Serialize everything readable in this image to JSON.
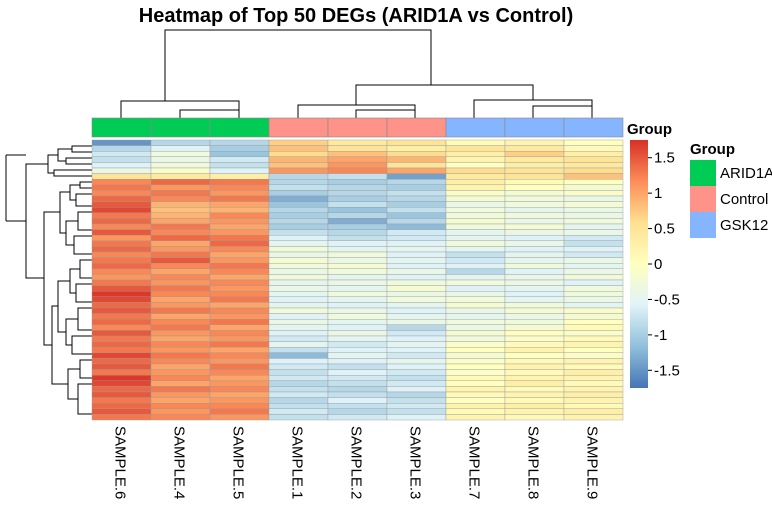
{
  "chart_data": {
    "type": "heatmap",
    "title": "Heatmap of Top 50 DEGs (ARID1A vs Control)",
    "columns": [
      "SAMPLE.6",
      "SAMPLE.4",
      "SAMPLE.5",
      "SAMPLE.1",
      "SAMPLE.2",
      "SAMPLE.3",
      "SAMPLE.7",
      "SAMPLE.8",
      "SAMPLE.9"
    ],
    "column_groups": [
      "ARID1A",
      "ARID1A",
      "ARID1A",
      "Control",
      "Control",
      "Control",
      "GSK12",
      "GSK12",
      "GSK12"
    ],
    "annotation_label": "Group",
    "legend": {
      "title": "Group",
      "entries": [
        {
          "label": "ARID1A",
          "color": "#00CC55"
        },
        {
          "label": "Control",
          "color": "#FF9289"
        },
        {
          "label": "GSK12",
          "color": "#85B5FF"
        }
      ]
    },
    "color_scale": {
      "min": -1.75,
      "max": 1.75,
      "colors": [
        "#4575B4",
        "#91BFDB",
        "#E0F3F8",
        "#FFFFBF",
        "#FEE090",
        "#FC8D59",
        "#D73027"
      ],
      "ticks": [
        1.5,
        1,
        0.5,
        0,
        -0.5,
        -1,
        -1.5
      ],
      "tick_labels": [
        "1.5",
        "1",
        "0.5",
        "0",
        "-0.5",
        "-1",
        "-1.5"
      ]
    },
    "row_count": 50,
    "values": [
      [
        -1.5,
        -0.9,
        -0.9,
        0.7,
        0.4,
        0.5,
        0.1,
        0.2,
        0.0
      ],
      [
        -0.9,
        -0.6,
        -1.0,
        0.8,
        0.5,
        0.3,
        0.5,
        0.4,
        0.1
      ],
      [
        -0.7,
        -0.3,
        -1.1,
        0.6,
        0.8,
        0.6,
        0.3,
        0.7,
        0.3
      ],
      [
        -0.8,
        -0.4,
        -0.7,
        0.9,
        1.0,
        0.9,
        0.2,
        0.4,
        0.5
      ],
      [
        -0.6,
        -0.3,
        -0.8,
        0.8,
        1.1,
        0.5,
        0.0,
        0.3,
        0.4
      ],
      [
        -0.4,
        -0.1,
        -0.6,
        1.1,
        1.2,
        1.0,
        0.6,
        0.5,
        0.6
      ],
      [
        0.5,
        0.4,
        0.3,
        -0.9,
        -0.8,
        -1.4,
        0.4,
        0.5,
        0.8
      ],
      [
        1.2,
        1.4,
        1.3,
        -0.9,
        -1.0,
        -0.9,
        0.3,
        0.1,
        0.0
      ],
      [
        1.3,
        1.1,
        1.2,
        -0.8,
        -0.9,
        -1.0,
        0.2,
        0.0,
        -0.2
      ],
      [
        1.2,
        1.3,
        1.1,
        -1.0,
        -0.9,
        -0.8,
        -0.1,
        -0.2,
        -0.1
      ],
      [
        1.4,
        1.2,
        1.3,
        -1.3,
        -1.0,
        -0.9,
        -0.2,
        -0.3,
        -0.4
      ],
      [
        1.5,
        0.9,
        1.0,
        -1.1,
        -0.8,
        -1.0,
        -0.4,
        -0.3,
        -0.2
      ],
      [
        1.6,
        0.8,
        0.9,
        -0.9,
        -1.1,
        -0.8,
        -0.3,
        -0.5,
        -0.4
      ],
      [
        1.3,
        0.9,
        1.2,
        -1.0,
        -0.9,
        -1.1,
        -0.3,
        -0.3,
        -0.4
      ],
      [
        1.4,
        1.0,
        1.1,
        -0.9,
        -1.3,
        -0.9,
        -0.2,
        -0.4,
        -0.3
      ],
      [
        1.2,
        1.3,
        1.0,
        -1.0,
        -1.0,
        -1.2,
        -0.3,
        -0.2,
        -0.5
      ],
      [
        1.5,
        1.2,
        1.1,
        -0.8,
        -0.9,
        -0.7,
        -0.5,
        -0.4,
        -0.4
      ],
      [
        1.1,
        1.4,
        1.3,
        -0.6,
        -0.8,
        -0.7,
        -0.5,
        -0.6,
        -0.7
      ],
      [
        1.3,
        1.0,
        1.4,
        -0.5,
        -0.6,
        -0.6,
        -0.3,
        -0.4,
        -0.8
      ],
      [
        1.4,
        1.1,
        1.2,
        -0.3,
        -0.5,
        -0.5,
        -0.5,
        -0.6,
        -0.6
      ],
      [
        1.2,
        1.3,
        1.0,
        -0.4,
        -0.3,
        -0.6,
        -0.8,
        -0.5,
        -0.7
      ],
      [
        1.3,
        1.5,
        1.1,
        -0.2,
        -0.4,
        -0.5,
        -0.7,
        -0.5,
        -0.4
      ],
      [
        1.4,
        1.2,
        1.3,
        -0.3,
        -0.2,
        -0.6,
        -0.6,
        -0.3,
        -0.5
      ],
      [
        1.2,
        1.0,
        1.2,
        -0.4,
        -0.3,
        -0.4,
        -0.9,
        -0.6,
        -0.4
      ],
      [
        1.1,
        1.2,
        1.0,
        -0.3,
        -0.5,
        -0.6,
        -0.5,
        -0.4,
        -0.3
      ],
      [
        1.3,
        1.1,
        1.2,
        -0.5,
        -0.4,
        -0.3,
        -0.3,
        -0.4,
        -0.6
      ],
      [
        1.5,
        1.3,
        1.1,
        -0.4,
        -0.5,
        -0.2,
        -0.6,
        -0.5,
        -0.3
      ],
      [
        1.7,
        1.2,
        1.2,
        -0.5,
        -0.3,
        -0.4,
        -0.4,
        -0.6,
        -0.3
      ],
      [
        1.6,
        1.0,
        1.3,
        -0.6,
        -0.5,
        -0.3,
        -0.3,
        -0.5,
        -0.4
      ],
      [
        1.4,
        1.1,
        1.0,
        -0.5,
        -0.6,
        -0.5,
        -0.2,
        -0.3,
        -0.5
      ],
      [
        1.5,
        1.3,
        1.2,
        -0.3,
        -0.4,
        -0.6,
        -0.4,
        -0.2,
        -0.1
      ],
      [
        1.3,
        1.0,
        1.1,
        -0.6,
        -0.3,
        -0.5,
        -0.5,
        -0.4,
        -0.2
      ],
      [
        1.4,
        1.2,
        1.3,
        -0.4,
        -0.5,
        -0.4,
        -0.3,
        -0.3,
        0.0
      ],
      [
        1.2,
        1.3,
        1.0,
        -0.5,
        -0.6,
        -0.9,
        -0.4,
        -0.2,
        0.1
      ],
      [
        1.5,
        1.1,
        1.2,
        -0.6,
        -0.4,
        -0.7,
        -0.2,
        0.0,
        -0.1
      ],
      [
        1.3,
        1.0,
        1.1,
        -0.7,
        -0.5,
        -0.6,
        -0.3,
        -0.1,
        0.1
      ],
      [
        1.4,
        1.2,
        1.3,
        -0.5,
        -0.7,
        -0.5,
        -0.1,
        0.1,
        0.2
      ],
      [
        1.3,
        1.1,
        1.0,
        -0.8,
        -0.6,
        -0.6,
        0.0,
        0.2,
        0.0
      ],
      [
        1.6,
        1.3,
        1.2,
        -1.2,
        -0.5,
        -0.7,
        -0.2,
        0.0,
        -0.1
      ],
      [
        1.4,
        1.2,
        1.1,
        -0.6,
        -0.6,
        -0.5,
        -0.1,
        0.1,
        0.2
      ],
      [
        1.5,
        1.0,
        1.3,
        -0.7,
        -0.8,
        -0.6,
        0.0,
        0.2,
        0.1
      ],
      [
        1.3,
        1.1,
        1.2,
        -0.8,
        -0.6,
        -0.7,
        -0.1,
        0.1,
        0.3
      ],
      [
        1.7,
        1.2,
        1.0,
        -0.7,
        -0.7,
        -0.8,
        0.1,
        0.2,
        0.2
      ],
      [
        1.6,
        1.0,
        1.1,
        -0.9,
        -0.8,
        -0.7,
        0.0,
        0.3,
        0.1
      ],
      [
        1.4,
        1.3,
        1.2,
        -0.8,
        -0.9,
        -0.6,
        0.2,
        0.1,
        0.2
      ],
      [
        1.5,
        1.1,
        1.0,
        -0.7,
        -0.8,
        -0.9,
        0.1,
        0.2,
        0.3
      ],
      [
        1.3,
        1.0,
        1.1,
        -0.9,
        -0.6,
        -0.8,
        0.0,
        0.1,
        0.2
      ],
      [
        1.4,
        1.2,
        1.2,
        -0.8,
        -0.8,
        -0.7,
        0.2,
        0.3,
        0.1
      ],
      [
        1.5,
        1.1,
        1.3,
        -0.7,
        -0.9,
        -0.8,
        0.1,
        0.2,
        0.3
      ],
      [
        1.3,
        1.2,
        1.1,
        -0.8,
        -0.7,
        -0.6,
        0.2,
        0.1,
        0.2
      ]
    ]
  }
}
